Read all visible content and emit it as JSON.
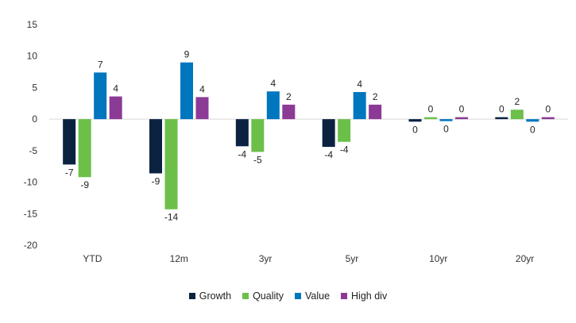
{
  "chart_data": {
    "type": "bar",
    "title": "",
    "xlabel": "",
    "ylabel": "",
    "ylim": [
      -20,
      15
    ],
    "yticks": [
      15,
      10,
      5,
      0,
      -5,
      -10,
      -15,
      -20
    ],
    "categories": [
      "YTD",
      "12m",
      "3yr",
      "5yr",
      "10yr",
      "20yr"
    ],
    "series": [
      {
        "name": "Growth",
        "color": "#0b2341",
        "values": [
          -7.2,
          -8.6,
          -4.3,
          -4.4,
          -0.4,
          0.1
        ],
        "labels": [
          "-7",
          "-9",
          "-4",
          "-4",
          "0",
          "0"
        ]
      },
      {
        "name": "Quality",
        "color": "#6cc04a",
        "values": [
          -9.2,
          -14.3,
          -5.2,
          -3.6,
          0.3,
          1.5
        ],
        "labels": [
          "-9",
          "-14",
          "-5",
          "-4",
          "0",
          "2"
        ]
      },
      {
        "name": "Value",
        "color": "#0076be",
        "values": [
          7.4,
          9.0,
          4.4,
          4.3,
          -0.1,
          -0.4
        ],
        "labels": [
          "7",
          "9",
          "4",
          "4",
          "0",
          "0"
        ]
      },
      {
        "name": "High div",
        "color": "#8b3a96",
        "values": [
          3.6,
          3.5,
          2.3,
          2.3,
          0.3,
          0.3
        ],
        "labels": [
          "4",
          "4",
          "2",
          "2",
          "0",
          "0"
        ]
      }
    ],
    "legend_position": "bottom",
    "grid": false
  }
}
